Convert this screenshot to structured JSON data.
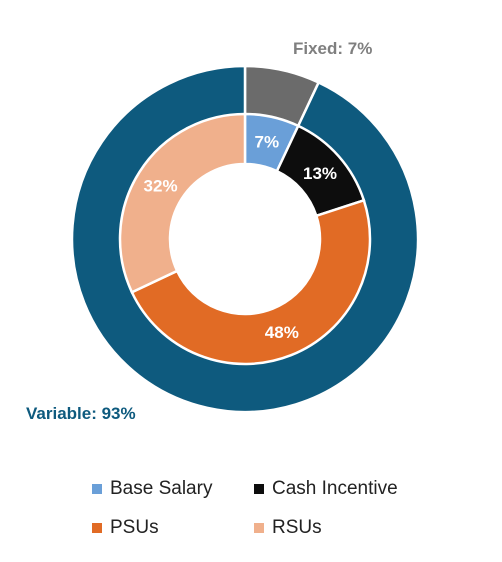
{
  "chart_data": {
    "type": "pie",
    "title": "",
    "rings": [
      {
        "ring": "outer",
        "slices": [
          {
            "label": "Fixed",
            "value": 7,
            "display": "Fixed: 7%",
            "color": "#6b6b6b",
            "label_color": "#7f7f7f"
          },
          {
            "label": "Variable",
            "value": 93,
            "display": "Variable: 93%",
            "color": "#0e5a7e",
            "label_color": "#0e5a7e"
          }
        ]
      },
      {
        "ring": "inner",
        "slices": [
          {
            "label": "Base Salary",
            "value": 7,
            "display": "7%",
            "color": "#6a9fd8"
          },
          {
            "label": "Cash Incentive",
            "value": 13,
            "display": "13%",
            "color": "#0d0d0d"
          },
          {
            "label": "PSUs",
            "value": 48,
            "display": "48%",
            "color": "#e16b25"
          },
          {
            "label": "RSUs",
            "value": 32,
            "display": "32%",
            "color": "#f0b08c"
          }
        ]
      }
    ],
    "legend": {
      "placement": "bottom",
      "items": [
        {
          "label": "Base Salary",
          "color": "#6a9fd8"
        },
        {
          "label": "Cash Incentive",
          "color": "#0d0d0d"
        },
        {
          "label": "PSUs",
          "color": "#e16b25"
        },
        {
          "label": "RSUs",
          "color": "#f0b08c"
        }
      ]
    }
  }
}
